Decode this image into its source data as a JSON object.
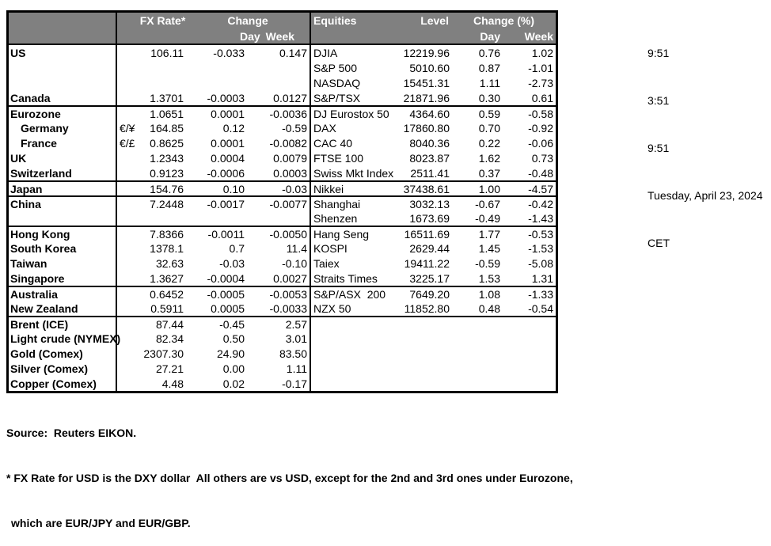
{
  "colors": {
    "header_bg": "#808080",
    "header_text": "#ffffff",
    "border": "#000000",
    "background": "#ffffff"
  },
  "meta": {
    "time_local": "9:51",
    "time_2": "3:51",
    "time_3": "9:51",
    "date": "Tuesday, April 23, 2024",
    "timezone": "CET"
  },
  "table": {
    "header": {
      "fx_rate": "FX Rate*",
      "change": "Change",
      "day_left": "Day",
      "week_left": "Week",
      "equities": "Equities",
      "level": "Level",
      "change_pct": "Change (%)",
      "day_right": "Day",
      "week_right": "Week"
    },
    "rows": [
      {
        "label": "US",
        "pair": "",
        "fx": "106.11",
        "fx_day": "-0.033",
        "fx_week": "0.147",
        "equity": "DJIA",
        "level": "12219.96",
        "eq_day": "0.76",
        "eq_week": "1.02",
        "indent": false,
        "group_start": false
      },
      {
        "label": "",
        "pair": "",
        "fx": "",
        "fx_day": "",
        "fx_week": "",
        "equity": "S&P 500",
        "level": "5010.60",
        "eq_day": "0.87",
        "eq_week": "-1.01",
        "indent": false,
        "group_start": false
      },
      {
        "label": "",
        "pair": "",
        "fx": "",
        "fx_day": "",
        "fx_week": "",
        "equity": "NASDAQ",
        "level": "15451.31",
        "eq_day": "1.11",
        "eq_week": "-2.73",
        "indent": false,
        "group_start": false
      },
      {
        "label": "Canada",
        "pair": "",
        "fx": "1.3701",
        "fx_day": "-0.0003",
        "fx_week": "0.0127",
        "equity": "S&P/TSX",
        "level": "21871.96",
        "eq_day": "0.30",
        "eq_week": "0.61",
        "indent": false,
        "group_start": false
      },
      {
        "label": "Eurozone",
        "pair": "",
        "fx": "1.0651",
        "fx_day": "0.0001",
        "fx_week": "-0.0036",
        "equity": "DJ Eurostox 50",
        "level": "4364.60",
        "eq_day": "0.59",
        "eq_week": "-0.58",
        "indent": false,
        "group_start": true
      },
      {
        "label": "Germany",
        "pair": "€/¥",
        "fx": "164.85",
        "fx_day": "0.12",
        "fx_week": "-0.59",
        "equity": "DAX",
        "level": "17860.80",
        "eq_day": "0.70",
        "eq_week": "-0.92",
        "indent": true,
        "group_start": false
      },
      {
        "label": "France",
        "pair": "€/£",
        "fx": "0.8625",
        "fx_day": "0.0001",
        "fx_week": "-0.0082",
        "equity": "CAC 40",
        "level": "8040.36",
        "eq_day": "0.22",
        "eq_week": "-0.06",
        "indent": true,
        "group_start": false
      },
      {
        "label": "UK",
        "pair": "",
        "fx": "1.2343",
        "fx_day": "0.0004",
        "fx_week": "0.0079",
        "equity": "FTSE 100",
        "level": "8023.87",
        "eq_day": "1.62",
        "eq_week": "0.73",
        "indent": false,
        "group_start": false
      },
      {
        "label": "Switzerland",
        "pair": "",
        "fx": "0.9123",
        "fx_day": "-0.0006",
        "fx_week": "0.0003",
        "equity": "Swiss Mkt Index",
        "level": "2511.41",
        "eq_day": "0.37",
        "eq_week": "-0.48",
        "indent": false,
        "group_start": false
      },
      {
        "label": "Japan",
        "pair": "",
        "fx": "154.76",
        "fx_day": "0.10",
        "fx_week": "-0.03",
        "equity": "Nikkei",
        "level": "37438.61",
        "eq_day": "1.00",
        "eq_week": "-4.57",
        "indent": false,
        "group_start": true
      },
      {
        "label": "China",
        "pair": "",
        "fx": "7.2448",
        "fx_day": "-0.0017",
        "fx_week": "-0.0077",
        "equity": "Shanghai",
        "level": "3032.13",
        "eq_day": "-0.67",
        "eq_week": "-0.42",
        "indent": false,
        "group_start": true
      },
      {
        "label": "",
        "pair": "",
        "fx": "",
        "fx_day": "",
        "fx_week": "",
        "equity": "Shenzen",
        "level": "1673.69",
        "eq_day": "-0.49",
        "eq_week": "-1.43",
        "indent": false,
        "group_start": false
      },
      {
        "label": "Hong Kong",
        "pair": "",
        "fx": "7.8366",
        "fx_day": "-0.0011",
        "fx_week": "-0.0050",
        "equity": "Hang Seng",
        "level": "16511.69",
        "eq_day": "1.77",
        "eq_week": "-0.53",
        "indent": false,
        "group_start": true
      },
      {
        "label": "South Korea",
        "pair": "",
        "fx": "1378.1",
        "fx_day": "0.7",
        "fx_week": "11.4",
        "equity": "KOSPI",
        "level": "2629.44",
        "eq_day": "1.45",
        "eq_week": "-1.53",
        "indent": false,
        "group_start": false
      },
      {
        "label": "Taiwan",
        "pair": "",
        "fx": "32.63",
        "fx_day": "-0.03",
        "fx_week": "-0.10",
        "equity": "Taiex",
        "level": "19411.22",
        "eq_day": "-0.59",
        "eq_week": "-5.08",
        "indent": false,
        "group_start": false
      },
      {
        "label": "Singapore",
        "pair": "",
        "fx": "1.3627",
        "fx_day": "-0.0004",
        "fx_week": "0.0027",
        "equity": "Straits Times",
        "level": "3225.17",
        "eq_day": "1.53",
        "eq_week": "1.31",
        "indent": false,
        "group_start": false
      },
      {
        "label": "Australia",
        "pair": "",
        "fx": "0.6452",
        "fx_day": "-0.0005",
        "fx_week": "-0.0053",
        "equity": "S&P/ASX  200",
        "level": "7649.20",
        "eq_day": "1.08",
        "eq_week": "-1.33",
        "indent": false,
        "group_start": true
      },
      {
        "label": "New Zealand",
        "pair": "",
        "fx": "0.5911",
        "fx_day": "0.0005",
        "fx_week": "-0.0033",
        "equity": "NZX 50",
        "level": "11852.80",
        "eq_day": "0.48",
        "eq_week": "-0.54",
        "indent": false,
        "group_start": false
      },
      {
        "label": "Brent (ICE)",
        "pair": "",
        "fx": "87.44",
        "fx_day": "-0.45",
        "fx_week": "2.57",
        "equity": "",
        "level": "",
        "eq_day": "",
        "eq_week": "",
        "indent": false,
        "group_start": true
      },
      {
        "label": "Light crude (NYMEX)",
        "pair": "",
        "fx": "82.34",
        "fx_day": "0.50",
        "fx_week": "3.01",
        "equity": "",
        "level": "",
        "eq_day": "",
        "eq_week": "",
        "indent": false,
        "group_start": false
      },
      {
        "label": "Gold (Comex)",
        "pair": "",
        "fx": "2307.30",
        "fx_day": "24.90",
        "fx_week": "83.50",
        "equity": "",
        "level": "",
        "eq_day": "",
        "eq_week": "",
        "indent": false,
        "group_start": false
      },
      {
        "label": "Silver (Comex)",
        "pair": "",
        "fx": "27.21",
        "fx_day": "0.00",
        "fx_week": "1.11",
        "equity": "",
        "level": "",
        "eq_day": "",
        "eq_week": "",
        "indent": false,
        "group_start": false
      },
      {
        "label": "Copper (Comex)",
        "pair": "",
        "fx": "4.48",
        "fx_day": "0.02",
        "fx_week": "-0.17",
        "equity": "",
        "level": "",
        "eq_day": "",
        "eq_week": "",
        "indent": false,
        "group_start": false
      }
    ]
  },
  "footer": {
    "source": "Source:  Reuters EIKON.",
    "note_line1": "* FX Rate for USD is the DXY dollar  All others are vs USD, except for the 2nd and 3rd ones under Eurozone,",
    "note_line2": "which are EUR/JPY and EUR/GBP."
  }
}
